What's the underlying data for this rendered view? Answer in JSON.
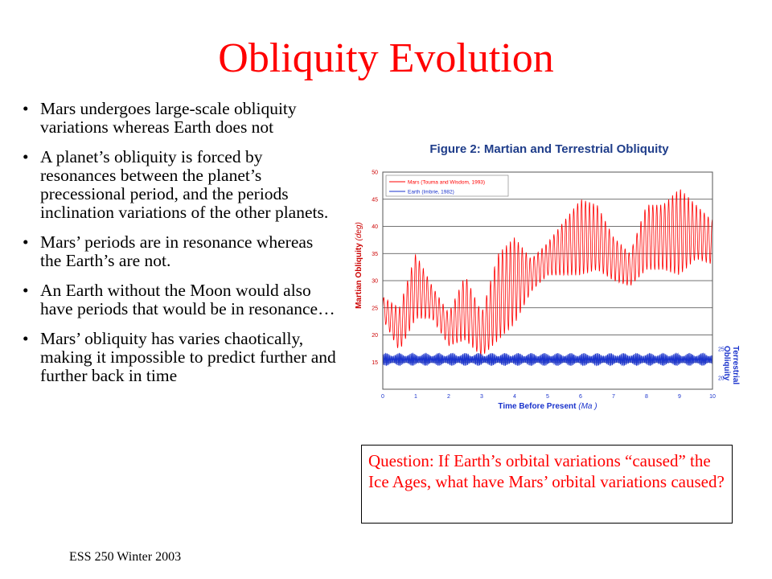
{
  "slide": {
    "title": "Obliquity Evolution",
    "bullets": [
      "Mars undergoes large-scale obliquity variations whereas Earth does not",
      "A planet’s obliquity is forced by resonances between the planet’s precessional period, and the periods  inclination variations of the other planets.",
      "Mars’ periods are in resonance whereas the Earth’s are not.",
      "An Earth without the Moon would also have periods that would be in resonance…",
      "Mars’ obliquity has varies chaotically, making it impossible to predict further and further back in time"
    ],
    "footer": "ESS 250 Winter 2003",
    "question": "Question:  If Earth’s orbital variations “caused” the Ice Ages, what have Mars’ orbital variations caused?"
  },
  "colors": {
    "title": "#ff0000",
    "mars": "#ff0000",
    "earth": "#1a33cc",
    "fig_title": "#1f3d8a",
    "question": "#ff0000"
  },
  "chart_data": {
    "type": "line",
    "title": "Figure 2: Martian and Terrestrial Obliquity",
    "xlabel": "Time Before Present",
    "xlabel_unit": "Ma",
    "ylabel": "Martian Obliquity",
    "ylabel_unit": "deg",
    "y2label": "Terrestrial Obliquity",
    "xlim": [
      0,
      10
    ],
    "ylim": [
      10,
      50
    ],
    "y2lim": [
      20,
      25
    ],
    "xticks": [
      "0",
      "1",
      "2",
      "3",
      "4",
      "5",
      "6",
      "7",
      "8",
      "9",
      "10"
    ],
    "yticks": [
      "15",
      "20",
      "25",
      "30",
      "35",
      "40",
      "45",
      "50"
    ],
    "y2ticks": [
      "20",
      "25"
    ],
    "grid": true,
    "legend_position": "top-left",
    "series": [
      {
        "name": "Mars (Touma and Wisdom, 1993)",
        "axis": "left",
        "envelope_x": [
          0,
          0.5,
          1.0,
          1.5,
          2.0,
          2.5,
          3.0,
          3.5,
          4.0,
          4.5,
          5.0,
          5.5,
          6.0,
          6.5,
          7.0,
          7.5,
          8.0,
          8.5,
          9.0,
          9.5,
          10.0
        ],
        "mean": [
          25,
          21,
          29,
          26,
          21,
          25,
          20,
          27,
          30,
          31,
          34,
          36,
          38,
          38,
          34,
          32,
          38,
          38,
          39,
          39,
          37
        ],
        "amplitude": [
          2,
          4,
          6,
          3,
          3,
          6,
          4,
          8,
          8,
          3,
          3,
          5,
          7,
          6,
          4,
          3,
          6,
          6,
          8,
          5,
          4
        ]
      },
      {
        "name": "Earth (Imbrie, 1982)",
        "axis": "right",
        "envelope_x": [
          0,
          10
        ],
        "mean": [
          23.2,
          23.2
        ],
        "amplitude": [
          1.1,
          1.1
        ]
      }
    ]
  }
}
